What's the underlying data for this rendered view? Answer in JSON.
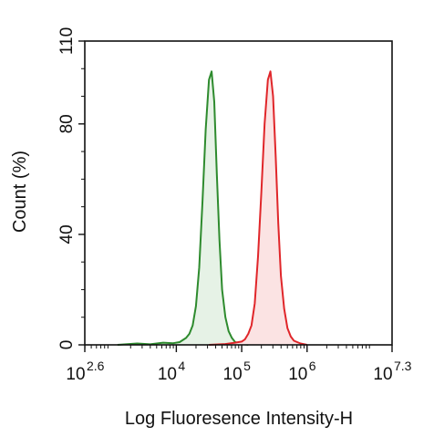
{
  "chart_data": {
    "type": "area",
    "title": "",
    "xlabel": "Log Fluoresence Intensity-H",
    "ylabel": "Count  (%)",
    "x_scale": "log",
    "xlim_log10": [
      2.6,
      7.3
    ],
    "ylim": [
      0,
      110
    ],
    "y_ticks": [
      0,
      40,
      80,
      110
    ],
    "x_ticks": [
      {
        "base": "10",
        "exp": "2.6",
        "log": 2.6
      },
      {
        "base": "10",
        "exp": "4",
        "log": 4
      },
      {
        "base": "10",
        "exp": "5",
        "log": 5
      },
      {
        "base": "10",
        "exp": "6",
        "log": 6
      },
      {
        "base": "10",
        "exp": "7.3",
        "log": 7.3
      }
    ],
    "grid": false,
    "series": [
      {
        "color": "#2e8b2e",
        "fill": "#e6f2e6",
        "points_log10x": [
          [
            3.1,
            0.0
          ],
          [
            3.4,
            0.5
          ],
          [
            3.6,
            0.2
          ],
          [
            3.8,
            0.8
          ],
          [
            3.95,
            0.6
          ],
          [
            4.05,
            1.0
          ],
          [
            4.15,
            2.5
          ],
          [
            4.2,
            4.0
          ],
          [
            4.25,
            7.0
          ],
          [
            4.3,
            14.0
          ],
          [
            4.35,
            28.0
          ],
          [
            4.4,
            52.0
          ],
          [
            4.45,
            78.0
          ],
          [
            4.5,
            96.0
          ],
          [
            4.54,
            99.0
          ],
          [
            4.58,
            88.0
          ],
          [
            4.62,
            62.0
          ],
          [
            4.66,
            38.0
          ],
          [
            4.7,
            20.0
          ],
          [
            4.75,
            10.0
          ],
          [
            4.8,
            5.0
          ],
          [
            4.85,
            2.5
          ],
          [
            4.9,
            1.0
          ],
          [
            5.0,
            0.3
          ],
          [
            5.1,
            0.0
          ]
        ]
      },
      {
        "color": "#e0262a",
        "fill": "#fbe3e3",
        "points_log10x": [
          [
            4.5,
            0.0
          ],
          [
            4.75,
            0.3
          ],
          [
            4.9,
            0.8
          ],
          [
            5.0,
            1.2
          ],
          [
            5.05,
            2.0
          ],
          [
            5.1,
            4.0
          ],
          [
            5.15,
            7.0
          ],
          [
            5.2,
            15.0
          ],
          [
            5.25,
            32.0
          ],
          [
            5.3,
            55.0
          ],
          [
            5.35,
            80.0
          ],
          [
            5.4,
            96.0
          ],
          [
            5.44,
            99.0
          ],
          [
            5.48,
            90.0
          ],
          [
            5.52,
            68.0
          ],
          [
            5.56,
            44.0
          ],
          [
            5.6,
            25.0
          ],
          [
            5.65,
            13.0
          ],
          [
            5.7,
            6.0
          ],
          [
            5.75,
            3.0
          ],
          [
            5.8,
            1.5
          ],
          [
            5.9,
            0.5
          ],
          [
            6.0,
            0.0
          ]
        ]
      }
    ]
  }
}
